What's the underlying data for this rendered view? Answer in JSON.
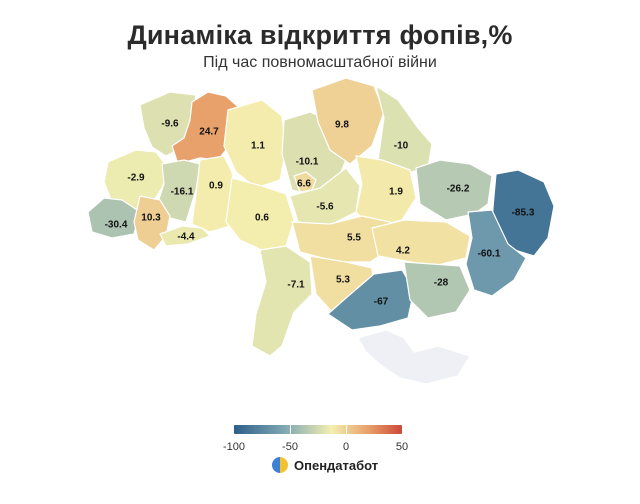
{
  "header": {
    "title": "Динаміка відкриття фопів,%",
    "subtitle": "Під час повномасштабної війни"
  },
  "legend": {
    "colors": [
      "#2c5f8a",
      "#7fa7b3",
      "#f3efb0",
      "#e8a06a",
      "#cb4a3a"
    ],
    "ticks": [
      {
        "value": -100,
        "label": "-100"
      },
      {
        "value": -50,
        "label": "-50"
      },
      {
        "value": 0,
        "label": "0"
      },
      {
        "value": 50,
        "label": "50"
      }
    ],
    "min": -100,
    "max": 50
  },
  "brand": {
    "name": "Опендатабот",
    "icon": "opendatabot-logo-icon"
  },
  "regions": [
    {
      "id": "volyn",
      "label": "-9.6",
      "value": -9.6
    },
    {
      "id": "rivne",
      "label": "24.7",
      "value": 24.7
    },
    {
      "id": "lviv",
      "label": "-2.9",
      "value": -2.9
    },
    {
      "id": "ternopil",
      "label": "-16.1",
      "value": -16.1
    },
    {
      "id": "khmelnytskyi",
      "label": "0.9",
      "value": 0.9
    },
    {
      "id": "zakarpattia",
      "label": "-30.4",
      "value": -30.4
    },
    {
      "id": "ivano-frankivsk",
      "label": "10.3",
      "value": 10.3
    },
    {
      "id": "chernivtsi",
      "label": "-4.4",
      "value": -4.4
    },
    {
      "id": "zhytomyr",
      "label": "1.1",
      "value": 1.1
    },
    {
      "id": "vinnytsia",
      "label": "0.6",
      "value": 0.6
    },
    {
      "id": "kyiv-oblast",
      "label": "-10.1",
      "value": -10.1
    },
    {
      "id": "kyiv-city",
      "label": "6.6",
      "value": 6.6
    },
    {
      "id": "chernihiv",
      "label": "9.8",
      "value": 9.8
    },
    {
      "id": "sumy",
      "label": "-10",
      "value": -10
    },
    {
      "id": "cherkasy",
      "label": "-5.6",
      "value": -5.6
    },
    {
      "id": "poltava",
      "label": "1.9",
      "value": 1.9
    },
    {
      "id": "kharkiv",
      "label": "-26.2",
      "value": -26.2
    },
    {
      "id": "luhansk",
      "label": "-85.3",
      "value": -85.3
    },
    {
      "id": "kirovohrad",
      "label": "5.5",
      "value": 5.5
    },
    {
      "id": "dnipropetrovsk",
      "label": "4.2",
      "value": 4.2
    },
    {
      "id": "donetsk",
      "label": "-60.1",
      "value": -60.1
    },
    {
      "id": "odesa",
      "label": "-7.1",
      "value": -7.1
    },
    {
      "id": "mykolaiv",
      "label": "5.3",
      "value": 5.3
    },
    {
      "id": "kherson",
      "label": "-67",
      "value": -67
    },
    {
      "id": "zaporizhzhia",
      "label": "-28",
      "value": -28
    },
    {
      "id": "crimea",
      "label": "",
      "value": null
    }
  ]
}
